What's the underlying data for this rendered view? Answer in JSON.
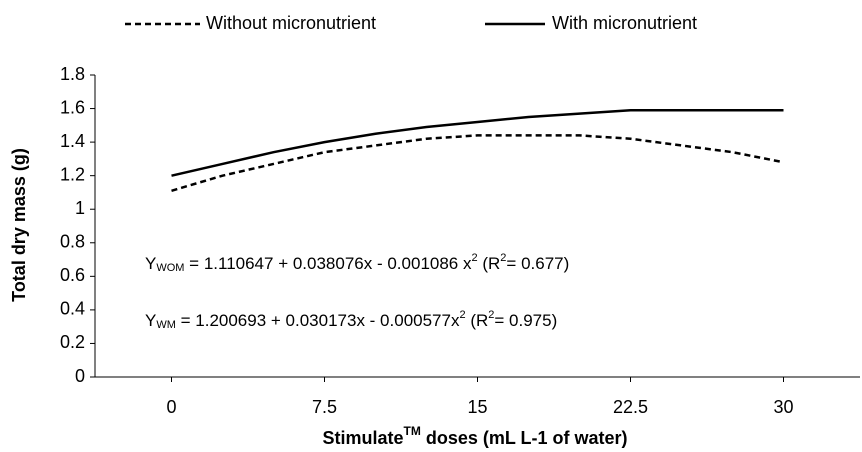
{
  "chart_data": {
    "type": "line",
    "x": [
      0,
      2.5,
      5,
      7.5,
      10,
      12.5,
      15,
      17.5,
      20,
      22.5,
      25,
      27.5,
      30
    ],
    "series": [
      {
        "name": "Without micronutrient",
        "color": "#000000",
        "line_style": "dashed",
        "values": [
          1.11,
          1.2,
          1.27,
          1.34,
          1.38,
          1.42,
          1.44,
          1.44,
          1.44,
          1.42,
          1.38,
          1.34,
          1.28
        ]
      },
      {
        "name": "With micronutrient",
        "color": "#000000",
        "line_style": "solid",
        "values": [
          1.2,
          1.27,
          1.34,
          1.4,
          1.45,
          1.49,
          1.52,
          1.55,
          1.57,
          1.59,
          1.59,
          1.59,
          1.59
        ]
      }
    ],
    "x_label": {
      "text": "Stimulate",
      "sup": "TM",
      "rest": " doses (mL L-1 of water)"
    },
    "y_label": "Total dry mass (g)",
    "xlim": [
      -3.75,
      33.75
    ],
    "xticks": [
      0,
      7.5,
      15,
      22.5,
      30
    ],
    "ylim": [
      0,
      1.8
    ],
    "yticks": [
      0,
      0.2,
      0.4,
      0.6,
      0.8,
      1,
      1.2,
      1.4,
      1.6,
      1.8
    ],
    "grid": false,
    "legend": "top",
    "annotations": [
      {
        "y": "Y",
        "sub": "WOM",
        "eq": " = 1.110647 + 0.038076x - 0.001086 x",
        "sup": "2",
        "r": "  (R",
        "rsup": "2",
        "rv": "= 0.677)"
      },
      {
        "y": "Y",
        "sub": "WM",
        "eq": " = 1.200693 + 0.030173x - 0.000577x",
        "sup": "2",
        "r": "  (R",
        "rsup": "2",
        "rv": "= 0.975)"
      }
    ]
  }
}
